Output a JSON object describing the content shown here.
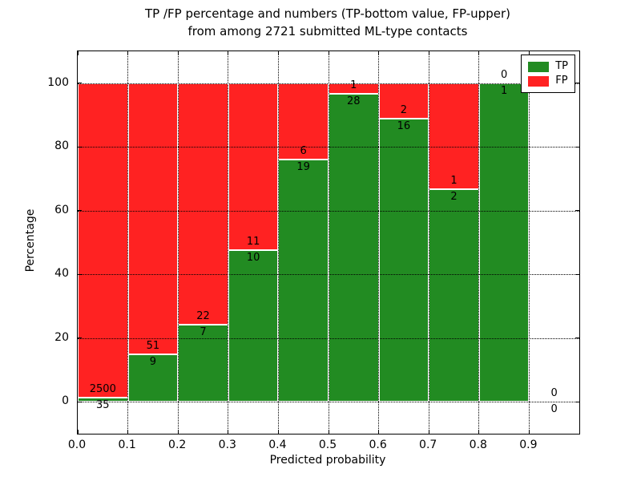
{
  "title": {
    "line1": "TP /FP percentage and numbers (TP-bottom value, FP-upper)",
    "line2": "from among 2721 submitted ML-type contacts"
  },
  "chart_data": {
    "type": "bar",
    "stacked": true,
    "title": "TP /FP percentage and numbers (TP-bottom value, FP-upper) from among 2721 submitted ML-type contacts",
    "xlabel": "Predicted probability",
    "ylabel": "Percentage",
    "xlim": [
      0.0,
      1.0
    ],
    "ylim": [
      -10,
      110
    ],
    "xtick_values": [
      0.0,
      0.1,
      0.2,
      0.3,
      0.4,
      0.5,
      0.6,
      0.7,
      0.8,
      0.9
    ],
    "xtick_labels": [
      "0.0",
      "0.1",
      "0.2",
      "0.3",
      "0.4",
      "0.5",
      "0.6",
      "0.7",
      "0.8",
      "0.9"
    ],
    "ytick_values": [
      0,
      20,
      40,
      60,
      80,
      100
    ],
    "ytick_labels": [
      "0",
      "20",
      "40",
      "60",
      "80",
      "100"
    ],
    "grid": "dotted",
    "legend_position": "upper-right",
    "bin_width": 0.1,
    "x_bins": [
      "0.0-0.1",
      "0.1-0.2",
      "0.2-0.3",
      "0.3-0.4",
      "0.4-0.5",
      "0.5-0.6",
      "0.6-0.7",
      "0.7-0.8",
      "0.8-0.9",
      "0.9-1.0"
    ],
    "series": [
      {
        "name": "TP",
        "color": "#228B22",
        "counts": [
          35,
          9,
          7,
          10,
          19,
          28,
          16,
          2,
          1,
          0
        ],
        "percent": [
          1.38,
          15.0,
          24.14,
          47.62,
          76.0,
          96.55,
          88.89,
          66.67,
          100.0,
          0.0
        ]
      },
      {
        "name": "FP",
        "color": "#FF2222",
        "counts": [
          2500,
          51,
          22,
          11,
          6,
          1,
          2,
          1,
          0,
          0
        ],
        "percent": [
          98.62,
          85.0,
          75.86,
          52.38,
          24.0,
          3.45,
          11.11,
          33.33,
          0.0,
          0.0
        ]
      }
    ],
    "total_submitted": 2721
  }
}
